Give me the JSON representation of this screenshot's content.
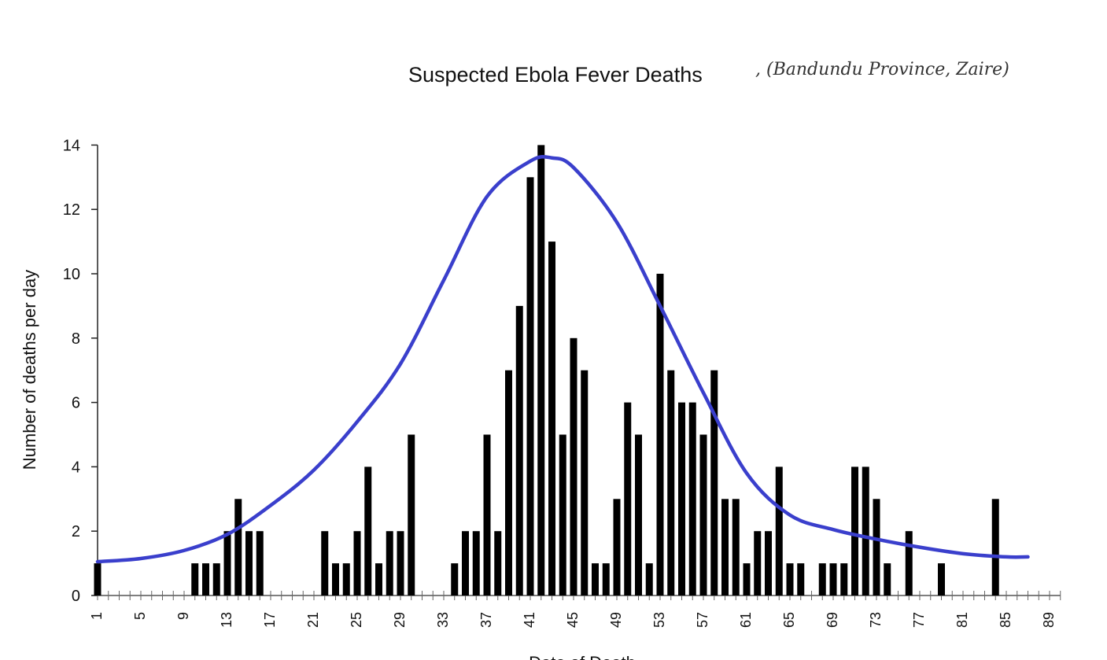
{
  "chart_data": {
    "type": "bar",
    "title": "Suspected Ebola Fever Deaths",
    "annotation": ", (Bandundu Province, Zaire)",
    "xlabel": "Date of Death",
    "ylabel": "Number of deaths per day",
    "ylim": [
      0,
      14
    ],
    "y_ticks": [
      0,
      2,
      4,
      6,
      8,
      10,
      12,
      14
    ],
    "x_tick_labels": [
      1,
      5,
      9,
      13,
      17,
      21,
      25,
      29,
      33,
      37,
      41,
      45,
      49,
      53,
      57,
      61,
      65,
      69,
      73,
      77,
      81,
      85,
      89
    ],
    "x": [
      1,
      10,
      11,
      12,
      13,
      14,
      15,
      16,
      22,
      23,
      24,
      25,
      26,
      27,
      28,
      29,
      30,
      34,
      35,
      36,
      37,
      38,
      39,
      40,
      41,
      42,
      43,
      44,
      45,
      46,
      47,
      48,
      49,
      50,
      51,
      52,
      53,
      54,
      55,
      56,
      57,
      58,
      59,
      60,
      61,
      62,
      63,
      64,
      65,
      66,
      68,
      69,
      70,
      71,
      72,
      73,
      74,
      76,
      79,
      84
    ],
    "values": [
      1,
      1,
      1,
      1,
      2,
      3,
      2,
      2,
      2,
      1,
      1,
      2,
      4,
      1,
      2,
      2,
      5,
      1,
      2,
      2,
      5,
      2,
      7,
      9,
      13,
      14,
      11,
      5,
      8,
      7,
      1,
      1,
      3,
      6,
      5,
      1,
      10,
      7,
      6,
      6,
      5,
      7,
      3,
      3,
      1,
      2,
      2,
      4,
      1,
      1,
      1,
      1,
      1,
      4,
      4,
      3,
      1,
      2,
      1,
      3
    ],
    "fitted_curve": {
      "x": [
        1,
        5,
        9,
        13,
        17,
        21,
        25,
        29,
        33,
        37,
        41,
        43,
        45,
        49,
        53,
        57,
        61,
        65,
        69,
        73,
        77,
        81,
        85,
        87
      ],
      "y": [
        1.05,
        1.15,
        1.4,
        1.9,
        2.8,
        3.9,
        5.4,
        7.2,
        9.8,
        12.4,
        13.5,
        13.6,
        13.3,
        11.6,
        9.0,
        6.3,
        3.8,
        2.5,
        2.05,
        1.75,
        1.5,
        1.3,
        1.2,
        1.2
      ],
      "color": "#3a3fcc"
    },
    "bar_color": "#000000",
    "grid": false
  }
}
